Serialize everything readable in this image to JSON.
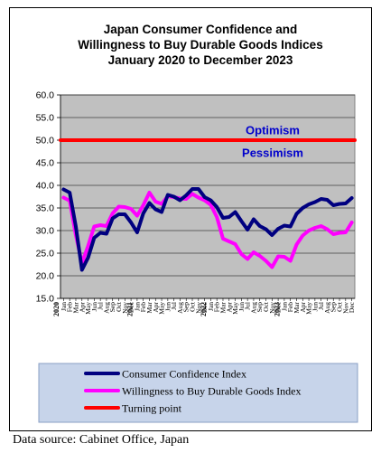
{
  "source_note": "Data source: Cabinet Office, Japan",
  "colors": {
    "plot_bg": "#c0c0c0",
    "consumer_line": "#000080",
    "willingness_line": "#ff00ff",
    "turning_point": "#ff0000",
    "annotation_text": "#0000cc",
    "legend_bg": "#c7d4ea",
    "legend_border": "#8a9fc4"
  },
  "chart_data": {
    "type": "line",
    "title": "Japan Consumer Confidence and Willingness to Buy Durable Goods Indices January 2020 to December 2023",
    "title_lines": [
      "Japan Consumer Confidence and",
      "Willingness to Buy Durable Goods Indices",
      "January 2020 to December 2023"
    ],
    "ylim": [
      15,
      60
    ],
    "yticks": [
      "15.0",
      "20.0",
      "25.0",
      "30.0",
      "35.0",
      "40.0",
      "45.0",
      "50.0",
      "55.0",
      "60.0"
    ],
    "grid": true,
    "legend_position": "bottom",
    "x_month_labels": [
      "Jan",
      "Feb",
      "Mar",
      "Apr",
      "May",
      "Jun",
      "Jul",
      "Aug",
      "Sep",
      "Oct",
      "Nov",
      "Dec"
    ],
    "x_year_labels": [
      "2020",
      "2021",
      "2022",
      "2023"
    ],
    "annotations": [
      {
        "text": "Optimism",
        "y": 52.3
      },
      {
        "text": "Pessimism",
        "y": 47.3
      }
    ],
    "series": [
      {
        "name": "Consumer Confidence Index",
        "values": [
          39.1,
          38.4,
          30.9,
          21.3,
          24.0,
          28.4,
          29.5,
          29.3,
          32.7,
          33.6,
          33.6,
          31.8,
          29.6,
          33.8,
          36.1,
          34.7,
          34.1,
          37.9,
          37.5,
          36.7,
          37.8,
          39.2,
          39.2,
          37.4,
          36.7,
          35.2,
          32.8,
          33.0,
          34.1,
          32.1,
          30.2,
          32.5,
          31.0,
          30.3,
          29.0,
          30.4,
          31.1,
          30.9,
          33.7,
          35.0,
          35.8,
          36.3,
          37.0,
          36.8,
          35.6,
          35.9,
          36.0,
          37.2
        ]
      },
      {
        "name": "Willingness to Buy Durable Goods Index",
        "values": [
          37.3,
          36.6,
          29.0,
          22.8,
          26.6,
          30.9,
          31.2,
          31.0,
          33.8,
          35.3,
          35.2,
          34.8,
          33.3,
          35.6,
          38.4,
          36.4,
          35.9,
          37.6,
          37.4,
          37.1,
          37.0,
          38.1,
          37.3,
          36.7,
          35.7,
          33.0,
          28.2,
          27.6,
          27.0,
          24.8,
          23.7,
          25.2,
          24.4,
          23.3,
          21.9,
          24.3,
          24.2,
          23.3,
          26.9,
          28.9,
          30.0,
          30.6,
          31.0,
          30.3,
          29.2,
          29.5,
          29.6,
          31.8
        ]
      },
      {
        "name": "Turning point",
        "values": [
          50,
          50,
          50,
          50,
          50,
          50,
          50,
          50,
          50,
          50,
          50,
          50,
          50,
          50,
          50,
          50,
          50,
          50,
          50,
          50,
          50,
          50,
          50,
          50,
          50,
          50,
          50,
          50,
          50,
          50,
          50,
          50,
          50,
          50,
          50,
          50,
          50,
          50,
          50,
          50,
          50,
          50,
          50,
          50,
          50,
          50,
          50,
          50
        ]
      }
    ]
  }
}
